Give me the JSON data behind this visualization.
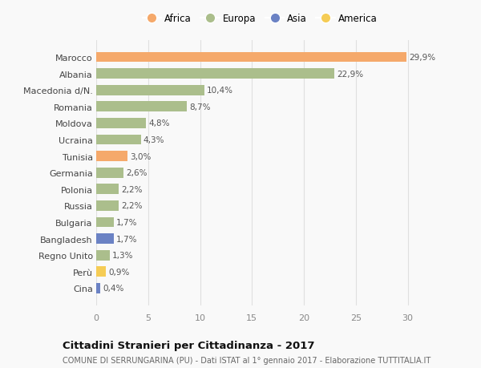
{
  "categories": [
    "Marocco",
    "Albania",
    "Macedonia d/N.",
    "Romania",
    "Moldova",
    "Ucraina",
    "Tunisia",
    "Germania",
    "Polonia",
    "Russia",
    "Bulgaria",
    "Bangladesh",
    "Regno Unito",
    "Perù",
    "Cina"
  ],
  "values": [
    29.9,
    22.9,
    10.4,
    8.7,
    4.8,
    4.3,
    3.0,
    2.6,
    2.2,
    2.2,
    1.7,
    1.7,
    1.3,
    0.9,
    0.4
  ],
  "labels": [
    "29,9%",
    "22,9%",
    "10,4%",
    "8,7%",
    "4,8%",
    "4,3%",
    "3,0%",
    "2,6%",
    "2,2%",
    "2,2%",
    "1,7%",
    "1,7%",
    "1,3%",
    "0,9%",
    "0,4%"
  ],
  "colors": [
    "#F5A96B",
    "#ABBE8C",
    "#ABBE8C",
    "#ABBE8C",
    "#ABBE8C",
    "#ABBE8C",
    "#F5A96B",
    "#ABBE8C",
    "#ABBE8C",
    "#ABBE8C",
    "#ABBE8C",
    "#6B82C4",
    "#ABBE8C",
    "#F5CC55",
    "#6B82C4"
  ],
  "legend": [
    {
      "label": "Africa",
      "color": "#F5A96B"
    },
    {
      "label": "Europa",
      "color": "#ABBE8C"
    },
    {
      "label": "Asia",
      "color": "#6B82C4"
    },
    {
      "label": "America",
      "color": "#F5CC55"
    }
  ],
  "xlim_max": 31.5,
  "xticks": [
    0,
    5,
    10,
    15,
    20,
    25,
    30
  ],
  "title": "Cittadini Stranieri per Cittadinanza - 2017",
  "subtitle": "COMUNE DI SERRUNGARINA (PU) - Dati ISTAT al 1° gennaio 2017 - Elaborazione TUTTITALIA.IT",
  "bg_color": "#f9f9f9",
  "grid_color": "#e0e0e0",
  "bar_height": 0.62,
  "label_fontsize": 7.5,
  "ytick_fontsize": 8.0,
  "xtick_fontsize": 8.0,
  "title_fontsize": 9.5,
  "subtitle_fontsize": 7.0,
  "legend_fontsize": 8.5
}
